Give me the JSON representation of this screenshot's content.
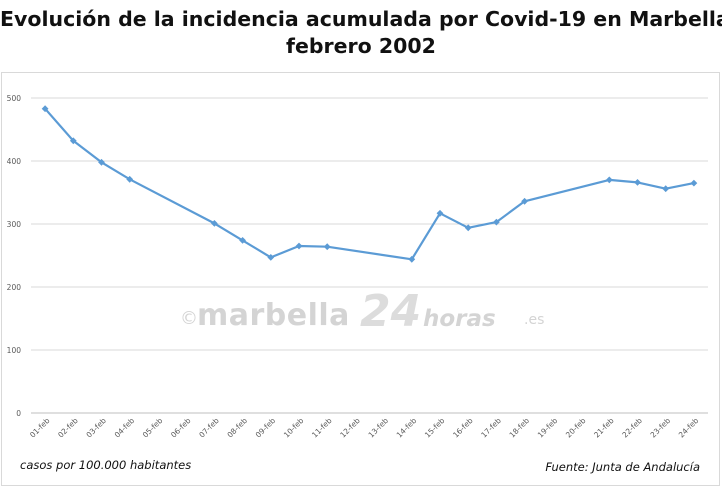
{
  "title": {
    "line1": "Evolución de la incidencia acumulada por Covid-19 en Marbella",
    "line2": "febrero 2002"
  },
  "footnotes": {
    "units": "casos por 100.000 habitantes",
    "source": "Fuente: Junta de Andalucía"
  },
  "watermark": {
    "copyright": "©",
    "name": "marbella",
    "number": "24",
    "word": "horas",
    "tld": ".es"
  },
  "chart_data": {
    "type": "line",
    "title": "Evolución de la incidencia acumulada por Covid-19 en Marbella",
    "subtitle": "febrero 2002",
    "xlabel": "",
    "ylabel": "",
    "categories": [
      "01-feb",
      "02-feb",
      "03-feb",
      "04-feb",
      "05-feb",
      "06-feb",
      "07-feb",
      "08-feb",
      "09-feb",
      "10-feb",
      "11-feb",
      "12-feb",
      "13-feb",
      "14-feb",
      "15-feb",
      "16-feb",
      "17-feb",
      "18-feb",
      "19-feb",
      "20-feb",
      "21-feb",
      "22-feb",
      "23-feb",
      "24-feb"
    ],
    "series": [
      {
        "values": [
          483,
          432,
          398,
          371,
          null,
          null,
          301,
          274,
          247,
          265,
          264,
          null,
          null,
          244,
          317,
          294,
          303,
          336,
          null,
          null,
          370,
          366,
          356,
          365
        ]
      }
    ],
    "ylim": [
      0,
      500
    ],
    "yticks": [
      0,
      100,
      200,
      300,
      400,
      500
    ],
    "grid": true,
    "legend": "none",
    "line_color": "#5b9bd5",
    "marker": "diamond"
  }
}
